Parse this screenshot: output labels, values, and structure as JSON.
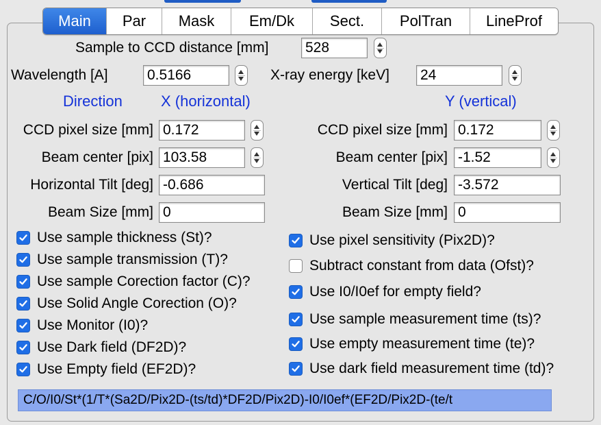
{
  "tabs": [
    {
      "label": "Main",
      "active": true
    },
    {
      "label": "Par",
      "active": false
    },
    {
      "label": "Mask",
      "active": false
    },
    {
      "label": "Em/Dk",
      "active": false
    },
    {
      "label": "Sect.",
      "active": false
    },
    {
      "label": "PolTran",
      "active": false
    },
    {
      "label": "LineProf",
      "active": false
    }
  ],
  "sample_distance": {
    "label": "Sample to CCD distance [mm]",
    "value": "528"
  },
  "wavelength": {
    "label": "Wavelength [A]",
    "value": "0.5166"
  },
  "xray_energy": {
    "label": "X-ray energy [keV]",
    "value": "24"
  },
  "direction": {
    "label": "Direction",
    "x": "X (horizontal)",
    "y": "Y (vertical)"
  },
  "left": {
    "pixel_size": {
      "label": "CCD pixel size [mm]",
      "value": "0.172"
    },
    "beam_center": {
      "label": "Beam center [pix]",
      "value": "103.58"
    },
    "tilt": {
      "label": "Horizontal Tilt [deg]",
      "value": "-0.686"
    },
    "beam_size": {
      "label": "Beam Size [mm]",
      "value": "0"
    }
  },
  "right": {
    "pixel_size": {
      "label": "CCD pixel size [mm]",
      "value": "0.172"
    },
    "beam_center": {
      "label": "Beam center [pix]",
      "value": "-1.52"
    },
    "tilt": {
      "label": "Vertical Tilt [deg]",
      "value": "-3.572"
    },
    "beam_size": {
      "label": "Beam Size [mm]",
      "value": "0"
    }
  },
  "checks_left": [
    {
      "label": "Use sample thickness (St)?",
      "checked": true
    },
    {
      "label": "Use sample transmission (T)?",
      "checked": true
    },
    {
      "label": "Use sample Corection factor (C)?",
      "checked": true
    },
    {
      "label": "Use Solid Angle Corection (O)?",
      "checked": true
    },
    {
      "label": "Use Monitor (I0)?",
      "checked": true
    },
    {
      "label": "Use Dark field (DF2D)?",
      "checked": true
    },
    {
      "label": "Use Empty field (EF2D)?",
      "checked": true
    }
  ],
  "checks_right": [
    {
      "label": "Use pixel sensitivity (Pix2D)?",
      "checked": true
    },
    {
      "label": "Subtract constant from data (Ofst)?",
      "checked": false
    },
    {
      "label": "Use I0/I0ef for empty field?",
      "checked": true
    },
    {
      "label": "Use sample measurement time (ts)?",
      "checked": true
    },
    {
      "label": "Use empty measurement time (te)?",
      "checked": true
    },
    {
      "label": "Use dark field measurement time (td)?",
      "checked": true
    }
  ],
  "formula": "C/O/I0/St*(1/T*(Sa2D/Pix2D-(ts/td)*DF2D/Pix2D)-I0/I0ef*(EF2D/Pix2D-(te/t",
  "colors": {
    "accent": "#1f6ee6",
    "direction_text": "#1432d8",
    "formula_bg": "#8aa8f0"
  }
}
